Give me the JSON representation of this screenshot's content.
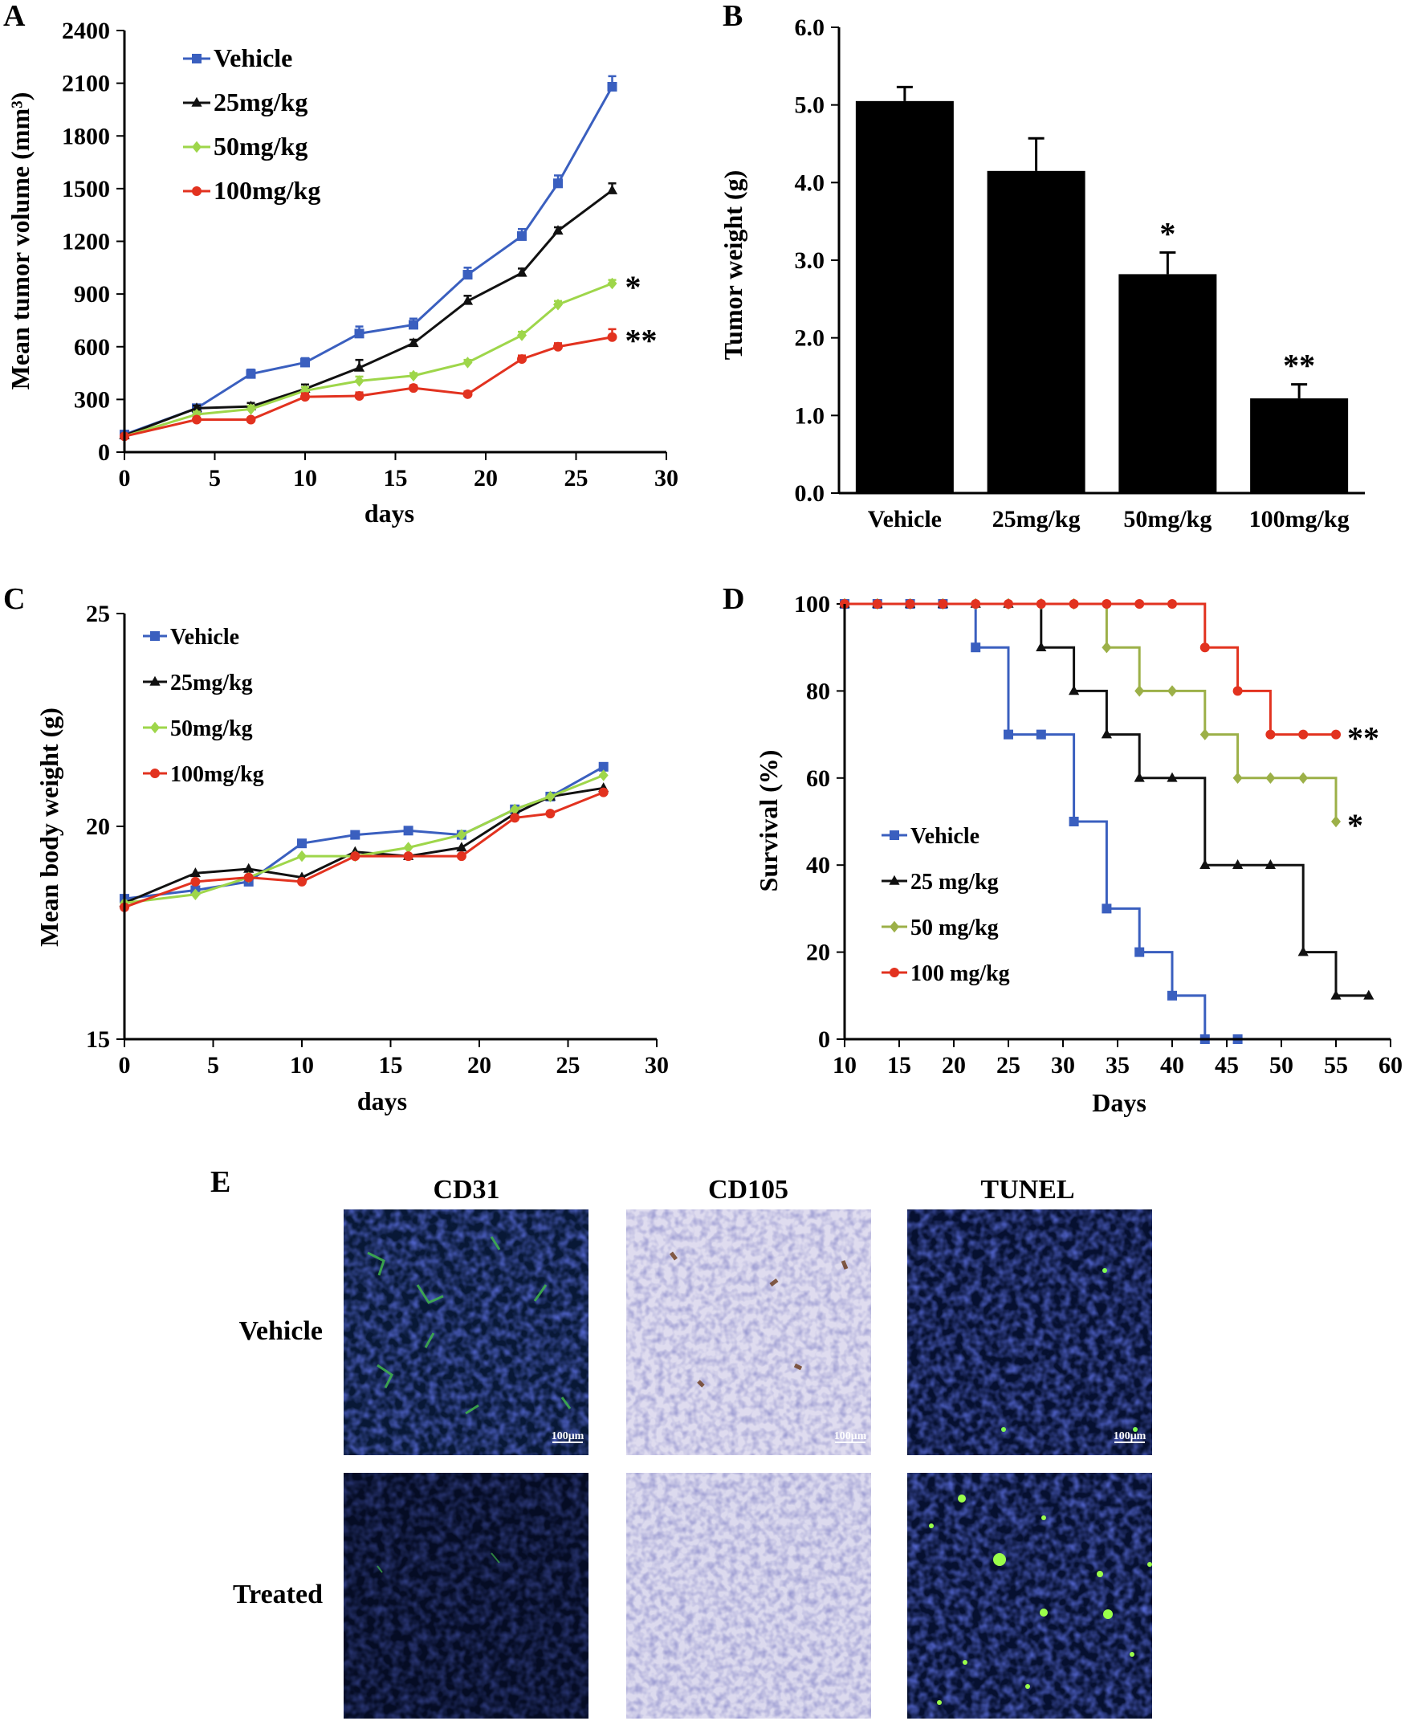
{
  "panel_letters": [
    "A",
    "B",
    "C",
    "D",
    "E"
  ],
  "colors": {
    "vehicle": "#3a5fbf",
    "mg25": "#111111",
    "mg50": "#9ed64a",
    "mg50_surv": "#9cb048",
    "mg100": "#e2321f",
    "bar": "#000000"
  },
  "chart_data": [
    {
      "panel": "A",
      "type": "line",
      "title": "",
      "xlabel": "days",
      "ylabel": "Mean tumor volume (mm³)",
      "xlim": [
        0,
        30
      ],
      "ylim": [
        0,
        2400
      ],
      "xticks": [
        0,
        5,
        10,
        15,
        20,
        25,
        30
      ],
      "yticks": [
        0,
        300,
        600,
        900,
        1200,
        1500,
        1800,
        2100,
        2400
      ],
      "x": [
        0,
        4,
        7,
        10,
        13,
        16,
        19,
        22,
        24,
        27
      ],
      "series": [
        {
          "name": "Vehicle",
          "color_key": "vehicle",
          "marker": "square",
          "values": [
            100,
            250,
            445,
            510,
            675,
            725,
            1010,
            1230,
            1530,
            2080
          ],
          "errors": [
            15,
            20,
            25,
            25,
            40,
            35,
            40,
            40,
            45,
            60
          ]
        },
        {
          "name": "25mg/kg",
          "color_key": "mg25",
          "marker": "triangle",
          "values": [
            95,
            250,
            260,
            360,
            480,
            620,
            860,
            1020,
            1260,
            1490
          ],
          "errors": [
            10,
            15,
            20,
            25,
            45,
            20,
            30,
            25,
            20,
            40
          ]
        },
        {
          "name": "50mg/kg",
          "color_key": "mg50",
          "marker": "diamond",
          "values": [
            90,
            215,
            245,
            350,
            405,
            435,
            510,
            665,
            840,
            960
          ],
          "errors": [
            10,
            15,
            20,
            20,
            25,
            15,
            15,
            20,
            20,
            20
          ]
        },
        {
          "name": "100mg/kg",
          "color_key": "mg100",
          "marker": "circle",
          "values": [
            90,
            185,
            185,
            315,
            320,
            365,
            330,
            530,
            600,
            655
          ],
          "errors": [
            10,
            10,
            10,
            20,
            20,
            15,
            15,
            20,
            20,
            45
          ]
        }
      ],
      "annotations": [
        {
          "text": "*",
          "series": "50mg/kg"
        },
        {
          "text": "**",
          "series": "100mg/kg"
        }
      ]
    },
    {
      "panel": "B",
      "type": "bar",
      "title": "",
      "xlabel": "",
      "ylabel": "Tumor weight (g)",
      "ylim": [
        0,
        6
      ],
      "yticks": [
        "0.0",
        "1.0",
        "2.0",
        "3.0",
        "4.0",
        "5.0",
        "6.0"
      ],
      "categories": [
        "Vehicle",
        "25mg/kg",
        "50mg/kg",
        "100mg/kg"
      ],
      "values": [
        5.05,
        4.15,
        2.82,
        1.22
      ],
      "errors": [
        0.18,
        0.42,
        0.28,
        0.18
      ],
      "annotations": [
        "",
        "",
        "*",
        "**"
      ]
    },
    {
      "panel": "C",
      "type": "line",
      "title": "",
      "xlabel": "days",
      "ylabel": "Mean  body weight (g)",
      "xlim": [
        0,
        30
      ],
      "ylim": [
        15,
        25
      ],
      "xticks": [
        0,
        5,
        10,
        15,
        20,
        25,
        30
      ],
      "yticks": [
        15,
        20,
        25
      ],
      "x": [
        0,
        4,
        7,
        10,
        13,
        16,
        19,
        22,
        24,
        27
      ],
      "series": [
        {
          "name": "Vehicle",
          "color_key": "vehicle",
          "marker": "square",
          "values": [
            18.3,
            18.5,
            18.7,
            19.6,
            19.8,
            19.9,
            19.8,
            20.4,
            20.7,
            21.4
          ]
        },
        {
          "name": "25mg/kg",
          "color_key": "mg25",
          "marker": "triangle",
          "values": [
            18.2,
            18.9,
            19.0,
            18.8,
            19.4,
            19.3,
            19.5,
            20.3,
            20.7,
            20.9
          ]
        },
        {
          "name": "50mg/kg",
          "color_key": "mg50",
          "marker": "diamond",
          "values": [
            18.2,
            18.4,
            18.8,
            19.3,
            19.3,
            19.5,
            19.8,
            20.4,
            20.7,
            21.2
          ]
        },
        {
          "name": "100mg/kg",
          "color_key": "mg100",
          "marker": "circle",
          "values": [
            18.1,
            18.7,
            18.8,
            18.7,
            19.3,
            19.3,
            19.3,
            20.2,
            20.3,
            20.8
          ]
        }
      ]
    },
    {
      "panel": "D",
      "type": "line",
      "step": true,
      "title": "",
      "xlabel": "Days",
      "ylabel": "Survival (%)",
      "xlim": [
        10,
        60
      ],
      "ylim": [
        0,
        100
      ],
      "xticks": [
        10,
        15,
        20,
        25,
        30,
        35,
        40,
        45,
        50,
        55,
        60
      ],
      "yticks": [
        0,
        20,
        40,
        60,
        80,
        100
      ],
      "series": [
        {
          "name": "Vehicle",
          "color_key": "vehicle",
          "marker": "square",
          "x": [
            10,
            13,
            16,
            19,
            22,
            25,
            28,
            31,
            34,
            37,
            40,
            43,
            46
          ],
          "values": [
            100,
            100,
            100,
            100,
            90,
            70,
            70,
            50,
            30,
            20,
            10,
            0,
            0
          ]
        },
        {
          "name": "25 mg/kg",
          "color_key": "mg25",
          "marker": "triangle",
          "x": [
            10,
            13,
            16,
            19,
            22,
            25,
            28,
            31,
            34,
            37,
            40,
            43,
            46,
            49,
            52,
            55,
            58
          ],
          "values": [
            100,
            100,
            100,
            100,
            100,
            100,
            90,
            80,
            70,
            60,
            60,
            40,
            40,
            40,
            20,
            10,
            10
          ]
        },
        {
          "name": "50 mg/kg",
          "color_key": "mg50_surv",
          "marker": "diamond",
          "x": [
            10,
            13,
            16,
            19,
            22,
            25,
            28,
            31,
            34,
            37,
            40,
            43,
            46,
            49,
            52,
            55
          ],
          "values": [
            100,
            100,
            100,
            100,
            100,
            100,
            100,
            100,
            90,
            80,
            80,
            70,
            60,
            60,
            60,
            50
          ]
        },
        {
          "name": "100 mg/kg",
          "color_key": "mg100",
          "marker": "circle",
          "x": [
            10,
            13,
            16,
            19,
            22,
            25,
            28,
            31,
            34,
            37,
            40,
            43,
            46,
            49,
            52,
            55
          ],
          "values": [
            100,
            100,
            100,
            100,
            100,
            100,
            100,
            100,
            100,
            100,
            100,
            90,
            80,
            70,
            70,
            70
          ]
        }
      ],
      "annotations": [
        {
          "text": "**",
          "series": "100 mg/kg"
        },
        {
          "text": "*",
          "series": "50 mg/kg"
        }
      ]
    }
  ],
  "panel_e": {
    "columns": [
      "CD31",
      "CD105",
      "TUNEL"
    ],
    "rows": [
      "Vehicle",
      "Treated"
    ],
    "scale_bar": "100μm"
  }
}
